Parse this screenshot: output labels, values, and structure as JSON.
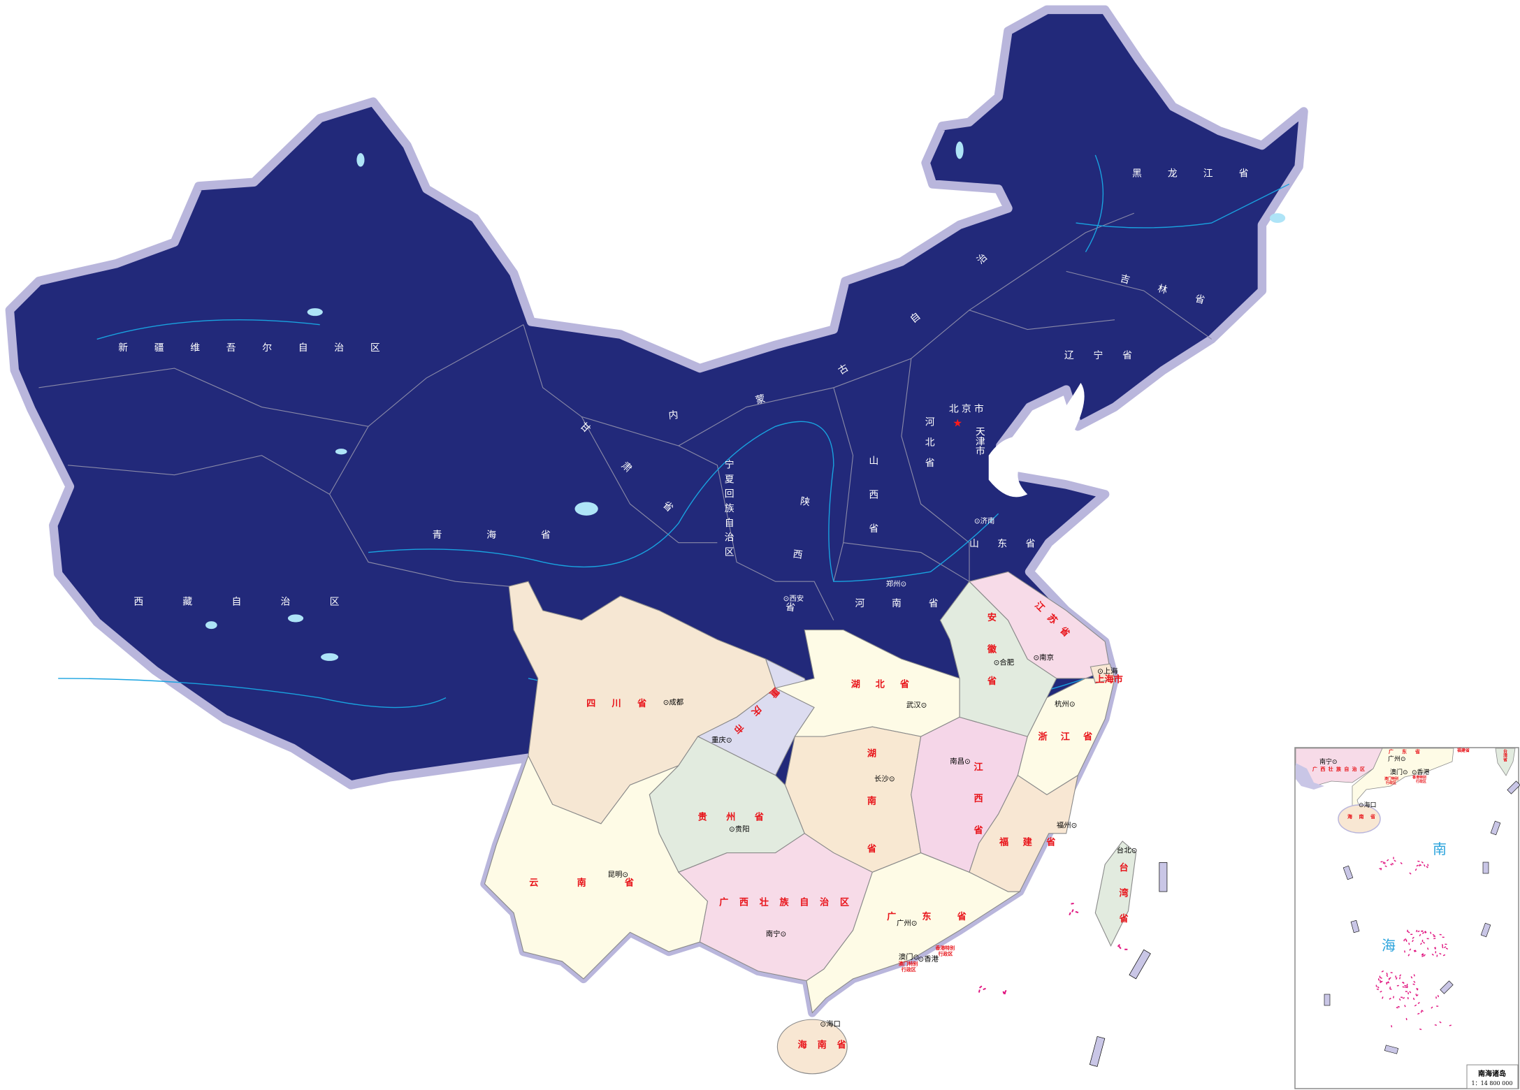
{
  "colors": {
    "north_fill": "#22297a",
    "border_halo": "#b9b6dc",
    "label_red": "#e8141a",
    "river_blue": "#19a3e0",
    "sea_label": "#2aa3dc",
    "island_magenta": "#e0127e",
    "capital_star": "#ff1a1a"
  },
  "labels": {
    "xinjiang": "新疆维吾尔自治区",
    "xizang": "西藏自治区",
    "qinghai": "青海省",
    "gansu": "甘肃省",
    "neimenggu": "内蒙古自治区",
    "heilongjiang": "黑龙江省",
    "jilin": "吉林省",
    "liaoning": "辽宁省",
    "beijing": "北京市",
    "tianjin": "天津市",
    "hebei": "河北省",
    "shanxi": "山西省",
    "shandong": "山东省",
    "henan": "河南省",
    "shaanxi": "陕西省",
    "ningxia": "宁夏回族自治区",
    "sichuan": "四川省",
    "chongqing": "重庆市",
    "hubei": "湖北省",
    "hunan": "湖南省",
    "jiangxi": "江西省",
    "anhui": "安徽省",
    "jiangsu": "江苏省",
    "shanghai": "上海市",
    "zhejiang": "浙江省",
    "fujian": "福建省",
    "taiwan": "台湾省",
    "guizhou": "贵州省",
    "yunnan": "云南省",
    "guangxi": "广西壮族自治区",
    "guangdong": "广东省",
    "hainan": "海南省",
    "macau_sar_1": "澳门特别",
    "macau_sar_2": "行政区",
    "hk_sar_1": "香港特别",
    "hk_sar_2": "行政区"
  },
  "cities": {
    "jinan": "济南",
    "zhengzhou": "郑州",
    "xian": "西安",
    "chengdu": "成都",
    "chongqing": "重庆",
    "wuhan": "武汉",
    "changsha": "长沙",
    "nanchang": "南昌",
    "hefei": "合肥",
    "nanjing": "南京",
    "shanghai": "上海",
    "hangzhou": "杭州",
    "fuzhou": "福州",
    "taibei": "台北",
    "guiyang": "贵阳",
    "kunming": "昆明",
    "nanning": "南宁",
    "guangzhou": "广州",
    "macau": "澳门",
    "hongkong": "香港",
    "haikou": "海口"
  },
  "inset": {
    "title": "南海诸岛",
    "scale": "1：14 800 000",
    "sea_char_1": "南",
    "sea_char_2": "海",
    "nanning": "南宁",
    "guangxi": "广西壮族自治区",
    "guangdong": "广东省",
    "guangzhou": "广州",
    "macau": "澳门",
    "hongkong": "香港",
    "macau_sar_1": "澳门特别",
    "macau_sar_2": "行政区",
    "hk_sar_1": "香港特别",
    "hk_sar_2": "行政区",
    "haikou": "海口",
    "hainan": "海南省",
    "fujian": "福建省",
    "taiwan": "台湾省"
  }
}
